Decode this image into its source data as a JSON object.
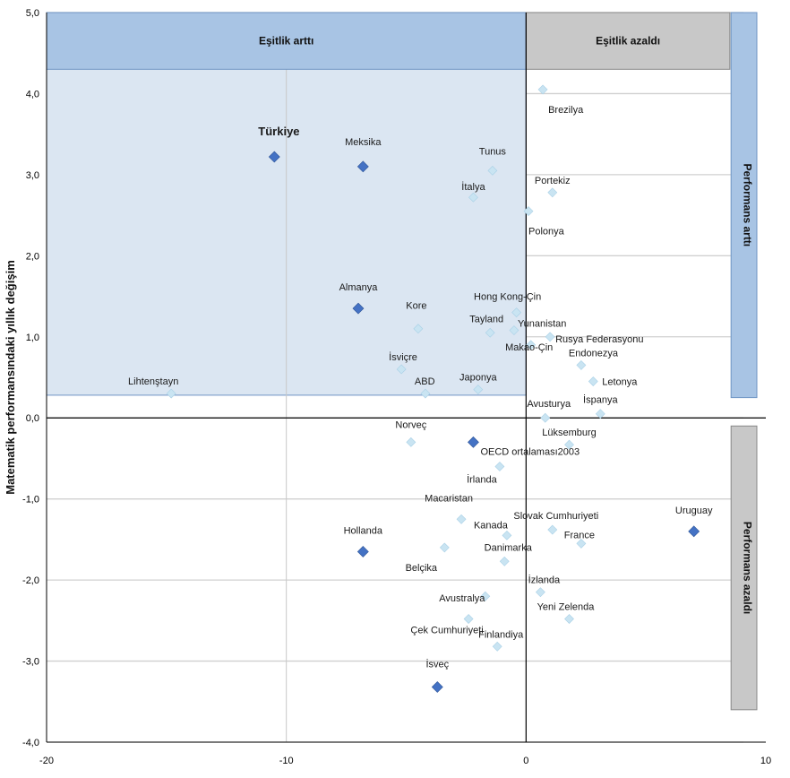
{
  "chart_data": {
    "type": "scatter",
    "ylabel": "Matematik performansındaki yıllık değişim",
    "xlabel": "",
    "xlim": [
      -20,
      10
    ],
    "ylim": [
      -4,
      5
    ],
    "x_ticks": [
      -20,
      -10,
      0,
      10
    ],
    "y_ticks": [
      "5,0",
      "4,0",
      "3,0",
      "2,0",
      "1,0",
      "0,0",
      "-1,0",
      "-2,0",
      "-3,0",
      "-4,0"
    ],
    "x_tick_labels": [
      "-20",
      "-10",
      "0",
      "10"
    ],
    "grid": true,
    "quadrant_labels": {
      "top_left": "Eşitlik arttı",
      "top_right": "Eşitlik azaldı",
      "right_top": "Performans arttı",
      "right_bottom": "Performans azaldı"
    },
    "colors": {
      "highlight_point": "#4472c4",
      "regular_point": "#c9e4f2",
      "header_blue": "#a8c4e4",
      "header_gray": "#c8c8c8",
      "shaded_region": "#dbe6f2"
    },
    "points": [
      {
        "label": "Türkiye",
        "x": -10.5,
        "y": 3.22,
        "highlight": true,
        "bold": true
      },
      {
        "label": "Meksika",
        "x": -6.8,
        "y": 3.1,
        "highlight": true
      },
      {
        "label": "Almanya",
        "x": -7.0,
        "y": 1.35,
        "highlight": true
      },
      {
        "label": "Hollanda",
        "x": -6.8,
        "y": -1.65,
        "highlight": true
      },
      {
        "label": "İsveç",
        "x": -3.7,
        "y": -3.32,
        "highlight": true
      },
      {
        "label": "Uruguay",
        "x": 7.0,
        "y": -1.4,
        "highlight": true
      },
      {
        "label": "OECD ortalaması2003",
        "x": -2.2,
        "y": -0.3,
        "highlight": true
      },
      {
        "label": "Brezilya",
        "x": 0.7,
        "y": 4.05,
        "highlight": false
      },
      {
        "label": "Tunus",
        "x": -1.4,
        "y": 3.05,
        "highlight": false
      },
      {
        "label": "Portekiz",
        "x": 1.1,
        "y": 2.78,
        "highlight": false
      },
      {
        "label": "İtalya",
        "x": -2.2,
        "y": 2.72,
        "highlight": false
      },
      {
        "label": "Polonya",
        "x": 0.1,
        "y": 2.55,
        "highlight": false
      },
      {
        "label": "Hong Kong-Çin",
        "x": -0.4,
        "y": 1.3,
        "highlight": false
      },
      {
        "label": "Kore",
        "x": -4.5,
        "y": 1.1,
        "highlight": false
      },
      {
        "label": "Tayland",
        "x": -1.5,
        "y": 1.05,
        "highlight": false
      },
      {
        "label": "Yunanistan",
        "x": -0.5,
        "y": 1.08,
        "highlight": false
      },
      {
        "label": "Rusya Federasyonu",
        "x": 1.0,
        "y": 1.0,
        "highlight": false
      },
      {
        "label": "Makao-Çin",
        "x": 0.2,
        "y": 0.9,
        "highlight": false
      },
      {
        "label": "Endonezya",
        "x": 2.3,
        "y": 0.65,
        "highlight": false
      },
      {
        "label": "İsviçre",
        "x": -5.2,
        "y": 0.6,
        "highlight": false
      },
      {
        "label": "Letonya",
        "x": 2.8,
        "y": 0.45,
        "highlight": false
      },
      {
        "label": "ABD",
        "x": -4.2,
        "y": 0.3,
        "highlight": false
      },
      {
        "label": "Japonya",
        "x": -2.0,
        "y": 0.35,
        "highlight": false
      },
      {
        "label": "Lihtenştayn",
        "x": -14.8,
        "y": 0.3,
        "highlight": false
      },
      {
        "label": "İspanya",
        "x": 3.1,
        "y": 0.05,
        "highlight": false
      },
      {
        "label": "Avusturya",
        "x": 0.8,
        "y": 0.0,
        "highlight": false
      },
      {
        "label": "Lüksemburg",
        "x": 1.8,
        "y": -0.33,
        "highlight": false
      },
      {
        "label": "Norveç",
        "x": -4.8,
        "y": -0.3,
        "highlight": false
      },
      {
        "label": "İrlanda",
        "x": -1.1,
        "y": -0.6,
        "highlight": false
      },
      {
        "label": "Macaristan",
        "x": -2.7,
        "y": -1.25,
        "highlight": false
      },
      {
        "label": "Kanada",
        "x": -0.8,
        "y": -1.45,
        "highlight": false
      },
      {
        "label": "Slovak Cumhuriyeti",
        "x": 1.1,
        "y": -1.38,
        "highlight": false
      },
      {
        "label": "France",
        "x": 2.3,
        "y": -1.55,
        "highlight": false
      },
      {
        "label": "Belçika",
        "x": -3.4,
        "y": -1.6,
        "highlight": false
      },
      {
        "label": "Danimarka",
        "x": -0.9,
        "y": -1.77,
        "highlight": false
      },
      {
        "label": "İzlanda",
        "x": 0.6,
        "y": -2.15,
        "highlight": false
      },
      {
        "label": "Avustralya",
        "x": -1.7,
        "y": -2.2,
        "highlight": false
      },
      {
        "label": "Yeni Zelenda",
        "x": 1.8,
        "y": -2.48,
        "highlight": false
      },
      {
        "label": "Çek Cumhuriyeti",
        "x": -2.4,
        "y": -2.48,
        "highlight": false
      },
      {
        "label": "Finlandiya",
        "x": -1.2,
        "y": -2.82,
        "highlight": false
      }
    ]
  }
}
